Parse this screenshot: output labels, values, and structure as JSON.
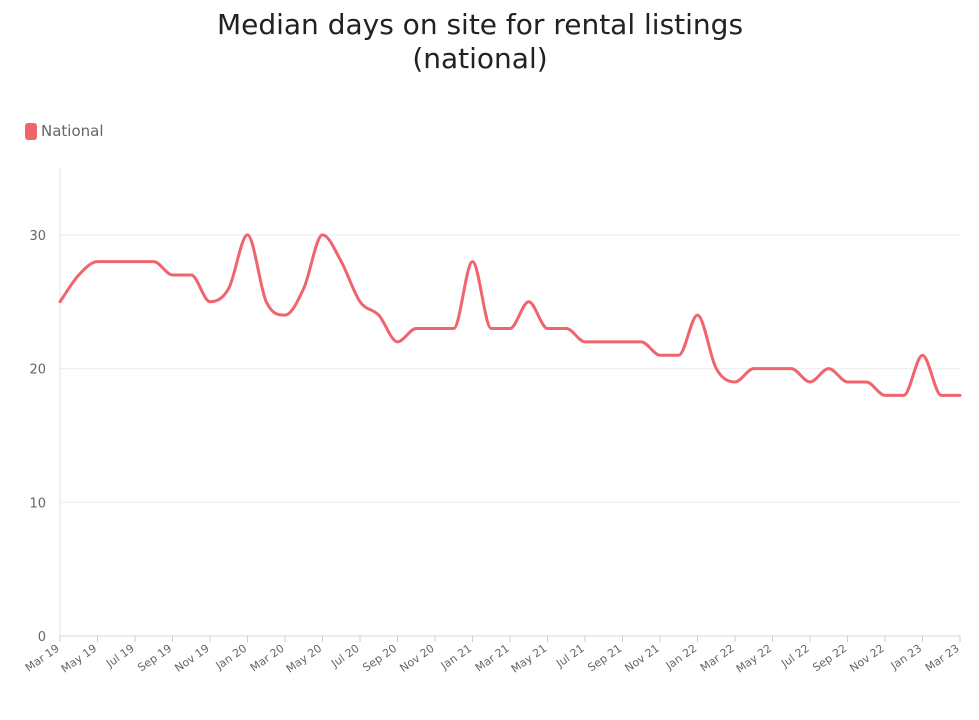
{
  "chart_data": {
    "type": "line",
    "title_line1": "Median days on site for rental listings",
    "title_line2": "(national)",
    "xlabel": "",
    "ylabel": "",
    "ylim": [
      0,
      35
    ],
    "yticks": [
      0,
      10,
      20,
      30
    ],
    "grid": true,
    "legend_position": "top-left",
    "x": [
      "Mar 19",
      "Apr 19",
      "May 19",
      "Jun 19",
      "Jul 19",
      "Aug 19",
      "Sep 19",
      "Oct 19",
      "Nov 19",
      "Dec 19",
      "Jan 20",
      "Feb 20",
      "Mar 20",
      "Apr 20",
      "May 20",
      "Jun 20",
      "Jul 20",
      "Aug 20",
      "Sep 20",
      "Oct 20",
      "Nov 20",
      "Dec 20",
      "Jan 21",
      "Feb 21",
      "Mar 21",
      "Apr 21",
      "May 21",
      "Jun 21",
      "Jul 21",
      "Aug 21",
      "Sep 21",
      "Oct 21",
      "Nov 21",
      "Dec 21",
      "Jan 22",
      "Feb 22",
      "Mar 22",
      "Apr 22",
      "May 22",
      "Jun 22",
      "Jul 22",
      "Aug 22",
      "Sep 22",
      "Oct 22",
      "Nov 22",
      "Dec 22",
      "Jan 23",
      "Feb 23",
      "Mar 23"
    ],
    "xtick_labels": [
      "Mar 19",
      "May 19",
      "Jul 19",
      "Sep 19",
      "Nov 19",
      "Jan 20",
      "Mar 20",
      "May 20",
      "Jul 20",
      "Sep 20",
      "Nov 20",
      "Jan 21",
      "Mar 21",
      "May 21",
      "Jul 21",
      "Sep 21",
      "Nov 21",
      "Jan 22",
      "Mar 22",
      "May 22",
      "Jul 22",
      "Sep 22",
      "Nov 22",
      "Jan 23",
      "Mar 23"
    ],
    "series": [
      {
        "name": "National",
        "color": "#f0646e",
        "values": [
          25,
          27,
          28,
          28,
          28,
          28,
          27,
          27,
          25,
          26,
          30,
          25,
          24,
          26,
          30,
          28,
          25,
          24,
          22,
          23,
          23,
          23,
          28,
          23,
          23,
          25,
          23,
          23,
          22,
          22,
          22,
          22,
          21,
          21,
          24,
          20,
          19,
          20,
          20,
          20,
          19,
          20,
          19,
          19,
          18,
          18,
          21,
          18,
          18
        ]
      }
    ]
  }
}
